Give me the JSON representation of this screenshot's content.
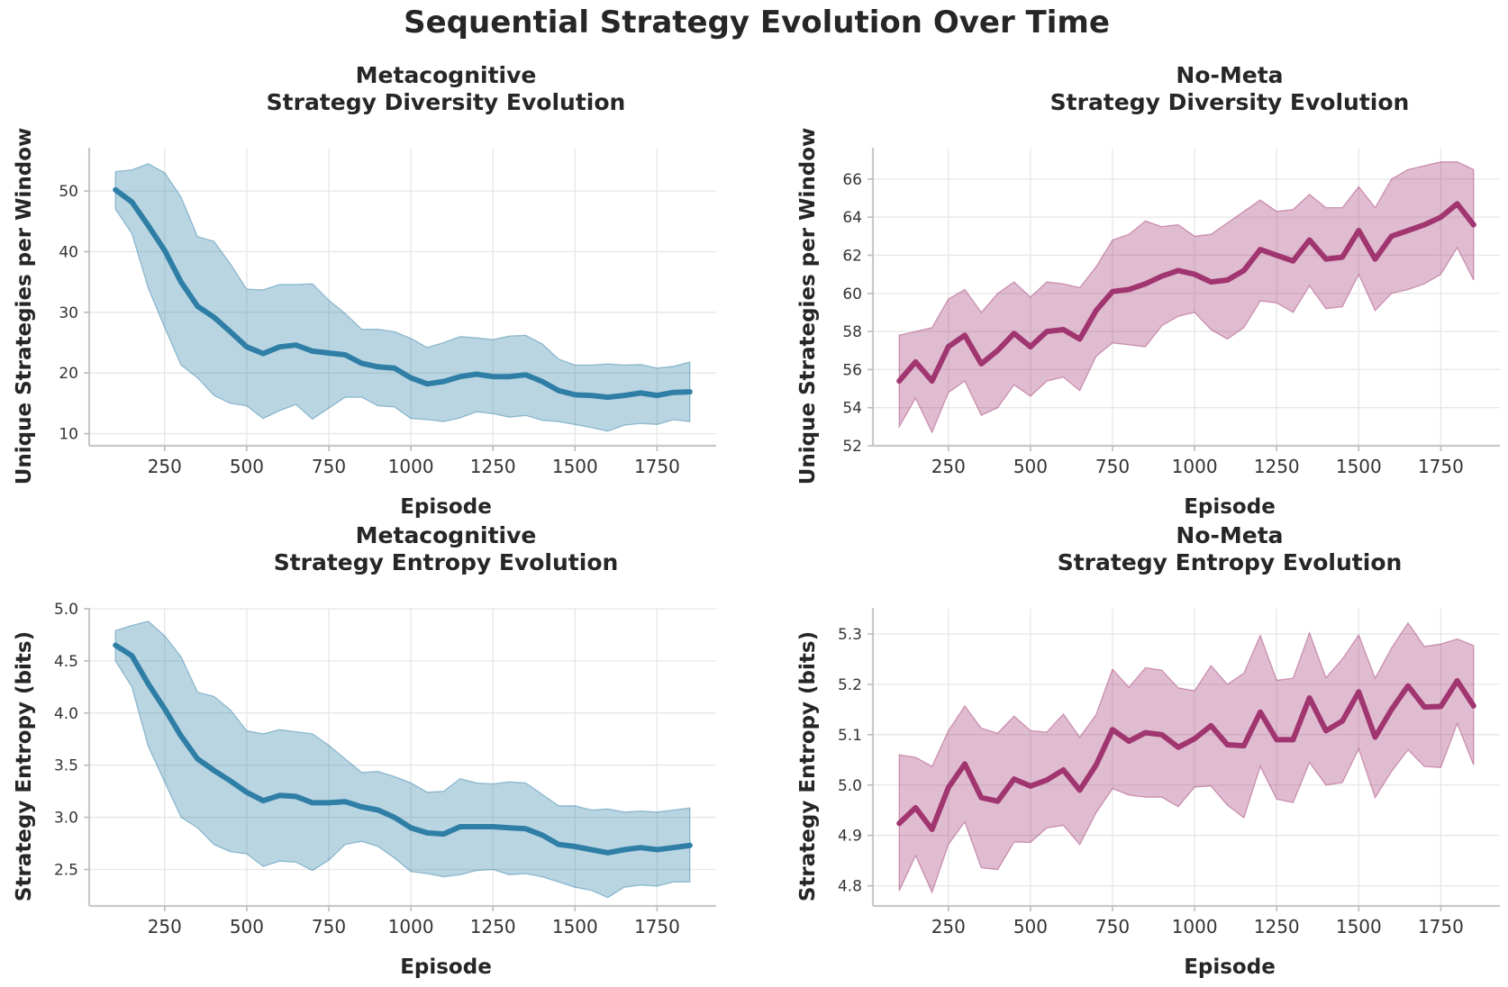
{
  "title": "Sequential Strategy Evolution Over Time",
  "colors": {
    "metacognitive": "#2e7ea6",
    "no_meta": "#a03570"
  },
  "chart_data": [
    {
      "type": "line",
      "title_line1": "Metacognitive",
      "title_line2": "Strategy Diversity Evolution",
      "xlabel": "Episode",
      "ylabel": "Unique Strategies per Window",
      "xlim": [
        20,
        1930
      ],
      "ylim": [
        8,
        57
      ],
      "xticks": [
        250,
        500,
        750,
        1000,
        1250,
        1500,
        1750
      ],
      "yticks": [
        10,
        20,
        30,
        40,
        50
      ],
      "ytick_labels": [
        "10",
        "20",
        "30",
        "40",
        "50"
      ],
      "color": "#2e7ea6",
      "x": [
        100,
        150,
        200,
        250,
        300,
        350,
        400,
        450,
        500,
        550,
        600,
        650,
        700,
        750,
        800,
        850,
        900,
        950,
        1000,
        1050,
        1100,
        1150,
        1200,
        1250,
        1300,
        1350,
        1400,
        1450,
        1500,
        1550,
        1600,
        1650,
        1700,
        1750,
        1800,
        1850
      ],
      "series": [
        {
          "y": [
            50.2,
            48.2,
            44.3,
            40.2,
            35.0,
            31.0,
            29.2,
            26.8,
            24.3,
            23.2,
            24.3,
            24.6,
            23.6,
            23.3,
            23.0,
            21.6,
            21.0,
            20.8,
            19.2,
            18.2,
            18.6,
            19.4,
            19.8,
            19.4,
            19.4,
            19.7,
            18.6,
            17.1,
            16.4,
            16.3,
            16.0,
            16.3,
            16.7,
            16.3,
            16.8,
            16.9
          ]
        },
        {
          "lower": [
            47.0,
            43.0,
            34.0,
            27.5,
            21.3,
            19.2,
            16.3,
            15.0,
            14.6,
            12.5,
            13.8,
            14.8,
            12.4,
            14.2,
            16.0,
            16.0,
            14.6,
            14.4,
            12.5,
            12.3,
            12.0,
            12.6,
            13.6,
            13.3,
            12.7,
            13.0,
            12.2,
            12.0,
            11.5,
            11.0,
            10.4,
            11.4,
            11.7,
            11.5,
            12.3,
            12.0
          ]
        },
        {
          "upper": [
            53.2,
            53.5,
            54.5,
            53.0,
            49.0,
            42.5,
            41.7,
            38.0,
            33.8,
            33.7,
            34.6,
            34.6,
            34.7,
            32.0,
            29.8,
            27.2,
            27.2,
            26.8,
            25.7,
            24.2,
            25.0,
            26.0,
            25.8,
            25.5,
            26.1,
            26.2,
            24.8,
            22.3,
            21.3,
            21.3,
            21.5,
            21.3,
            21.4,
            20.8,
            21.1,
            21.8
          ]
        }
      ]
    },
    {
      "type": "line",
      "title_line1": "No-Meta",
      "title_line2": "Strategy Diversity Evolution",
      "xlabel": "Episode",
      "ylabel": "Unique Strategies per Window",
      "xlim": [
        20,
        1930
      ],
      "ylim": [
        52,
        67.6
      ],
      "xticks": [
        250,
        500,
        750,
        1000,
        1250,
        1500,
        1750
      ],
      "yticks": [
        52,
        54,
        56,
        58,
        60,
        62,
        64,
        66
      ],
      "ytick_labels": [
        "52",
        "54",
        "56",
        "58",
        "60",
        "62",
        "64",
        "66"
      ],
      "color": "#a03570",
      "x": [
        100,
        150,
        200,
        250,
        300,
        350,
        400,
        450,
        500,
        550,
        600,
        650,
        700,
        750,
        800,
        850,
        900,
        950,
        1000,
        1050,
        1100,
        1150,
        1200,
        1250,
        1300,
        1350,
        1400,
        1450,
        1500,
        1550,
        1600,
        1650,
        1700,
        1750,
        1800,
        1850
      ],
      "series": [
        {
          "y": [
            55.4,
            56.4,
            55.4,
            57.2,
            57.8,
            56.3,
            57.0,
            57.9,
            57.2,
            58.0,
            58.1,
            57.6,
            59.1,
            60.1,
            60.2,
            60.5,
            60.9,
            61.2,
            61.0,
            60.6,
            60.7,
            61.2,
            62.3,
            62.0,
            61.7,
            62.8,
            61.8,
            61.9,
            63.3,
            61.8,
            63.0,
            63.3,
            63.6,
            64.0,
            64.7,
            63.6
          ]
        },
        {
          "lower": [
            53.0,
            54.5,
            52.7,
            54.8,
            55.4,
            53.6,
            54.0,
            55.2,
            54.6,
            55.4,
            55.6,
            54.9,
            56.7,
            57.4,
            57.3,
            57.2,
            58.3,
            58.8,
            59.0,
            58.1,
            57.6,
            58.2,
            59.6,
            59.5,
            59.0,
            60.4,
            59.2,
            59.3,
            61.0,
            59.1,
            60.0,
            60.2,
            60.5,
            61.0,
            62.4,
            60.7
          ]
        },
        {
          "upper": [
            57.8,
            58.0,
            58.2,
            59.7,
            60.2,
            59.0,
            60.0,
            60.6,
            59.8,
            60.6,
            60.5,
            60.3,
            61.4,
            62.8,
            63.1,
            63.8,
            63.5,
            63.6,
            63.0,
            63.1,
            63.7,
            64.3,
            64.9,
            64.3,
            64.4,
            65.2,
            64.5,
            64.5,
            65.6,
            64.5,
            66.0,
            66.5,
            66.7,
            66.9,
            66.9,
            66.5
          ]
        }
      ]
    },
    {
      "type": "line",
      "title_line1": "Metacognitive",
      "title_line2": "Strategy Entropy Evolution",
      "xlabel": "Episode",
      "ylabel": "Strategy Entropy (bits)",
      "xlim": [
        20,
        1930
      ],
      "ylim": [
        2.15,
        5.0
      ],
      "xticks": [
        250,
        500,
        750,
        1000,
        1250,
        1500,
        1750
      ],
      "yticks": [
        2.5,
        3.0,
        3.5,
        4.0,
        4.5,
        5.0
      ],
      "ytick_labels": [
        "2.5",
        "3.0",
        "3.5",
        "4.0",
        "4.5",
        "5.0"
      ],
      "color": "#2e7ea6",
      "x": [
        100,
        150,
        200,
        250,
        300,
        350,
        400,
        450,
        500,
        550,
        600,
        650,
        700,
        750,
        800,
        850,
        900,
        950,
        1000,
        1050,
        1100,
        1150,
        1200,
        1250,
        1300,
        1350,
        1400,
        1450,
        1500,
        1550,
        1600,
        1650,
        1700,
        1750,
        1800,
        1850
      ],
      "series": [
        {
          "y": [
            4.65,
            4.55,
            4.28,
            4.04,
            3.78,
            3.56,
            3.45,
            3.35,
            3.24,
            3.16,
            3.21,
            3.2,
            3.14,
            3.14,
            3.15,
            3.1,
            3.07,
            3.0,
            2.9,
            2.85,
            2.84,
            2.91,
            2.91,
            2.91,
            2.9,
            2.89,
            2.83,
            2.74,
            2.72,
            2.69,
            2.66,
            2.69,
            2.71,
            2.69,
            2.71,
            2.73
          ]
        },
        {
          "lower": [
            4.5,
            4.25,
            3.68,
            3.34,
            3.0,
            2.9,
            2.74,
            2.67,
            2.65,
            2.53,
            2.58,
            2.57,
            2.49,
            2.59,
            2.74,
            2.77,
            2.72,
            2.61,
            2.48,
            2.46,
            2.43,
            2.45,
            2.49,
            2.5,
            2.45,
            2.46,
            2.43,
            2.38,
            2.33,
            2.3,
            2.23,
            2.33,
            2.35,
            2.34,
            2.38,
            2.38
          ]
        },
        {
          "upper": [
            4.79,
            4.84,
            4.88,
            4.74,
            4.54,
            4.2,
            4.16,
            4.03,
            3.83,
            3.8,
            3.84,
            3.82,
            3.8,
            3.69,
            3.56,
            3.43,
            3.44,
            3.39,
            3.33,
            3.24,
            3.25,
            3.37,
            3.33,
            3.32,
            3.34,
            3.33,
            3.22,
            3.11,
            3.11,
            3.07,
            3.08,
            3.05,
            3.06,
            3.05,
            3.07,
            3.09
          ]
        }
      ]
    },
    {
      "type": "line",
      "title_line1": "No-Meta",
      "title_line2": "Strategy Entropy Evolution",
      "xlabel": "Episode",
      "ylabel": "Strategy Entropy (bits)",
      "xlim": [
        20,
        1930
      ],
      "ylim": [
        4.76,
        5.35
      ],
      "xticks": [
        250,
        500,
        750,
        1000,
        1250,
        1500,
        1750
      ],
      "yticks": [
        4.8,
        4.9,
        5.0,
        5.1,
        5.2,
        5.3
      ],
      "ytick_labels": [
        "4.8",
        "4.9",
        "5.0",
        "5.1",
        "5.2",
        "5.3"
      ],
      "color": "#a03570",
      "x": [
        100,
        150,
        200,
        250,
        300,
        350,
        400,
        450,
        500,
        550,
        600,
        650,
        700,
        750,
        800,
        850,
        900,
        950,
        1000,
        1050,
        1100,
        1150,
        1200,
        1250,
        1300,
        1350,
        1400,
        1450,
        1500,
        1550,
        1600,
        1650,
        1700,
        1750,
        1800,
        1850
      ],
      "series": [
        {
          "y": [
            4.924,
            4.955,
            4.912,
            4.995,
            5.042,
            4.975,
            4.968,
            5.012,
            4.998,
            5.01,
            5.03,
            4.99,
            5.04,
            5.11,
            5.087,
            5.104,
            5.1,
            5.075,
            5.092,
            5.118,
            5.08,
            5.078,
            5.145,
            5.09,
            5.09,
            5.173,
            5.108,
            5.127,
            5.185,
            5.095,
            5.15,
            5.197,
            5.155,
            5.156,
            5.207,
            5.157
          ]
        },
        {
          "lower": [
            4.79,
            4.86,
            4.787,
            4.882,
            4.927,
            4.836,
            4.832,
            4.887,
            4.886,
            4.915,
            4.92,
            4.882,
            4.945,
            4.993,
            4.98,
            4.976,
            4.976,
            4.957,
            4.996,
            4.998,
            4.96,
            4.935,
            5.037,
            4.972,
            4.965,
            5.045,
            5.0,
            5.005,
            5.072,
            4.975,
            5.027,
            5.07,
            5.037,
            5.035,
            5.122,
            5.04
          ]
        },
        {
          "upper": [
            5.06,
            5.055,
            5.037,
            5.108,
            5.157,
            5.113,
            5.103,
            5.137,
            5.108,
            5.105,
            5.141,
            5.095,
            5.14,
            5.23,
            5.194,
            5.233,
            5.228,
            5.193,
            5.187,
            5.237,
            5.2,
            5.222,
            5.297,
            5.208,
            5.212,
            5.302,
            5.213,
            5.25,
            5.298,
            5.212,
            5.272,
            5.322,
            5.275,
            5.28,
            5.29,
            5.277
          ]
        }
      ]
    }
  ]
}
